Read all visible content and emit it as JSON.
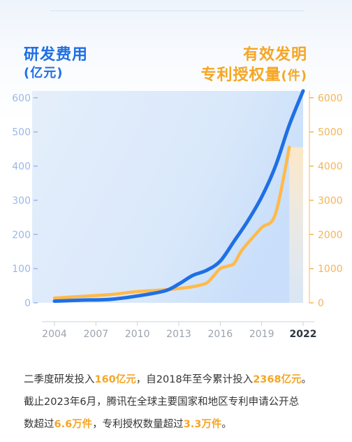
{
  "titles": {
    "left_line1": "研发费用",
    "left_line2": "(亿元)",
    "right_line1": "有效发明",
    "right_line2": "专利授权量",
    "right_unit": "(件)"
  },
  "colors": {
    "rd_line": "#1f6fe5",
    "patent_line": "#ffba4a",
    "left_axis_ticks": "#9ab8e6",
    "right_axis_ticks": "#f5b455",
    "x_ticks": "#9aa3ad",
    "highlight": "#f5a623"
  },
  "chart_data": {
    "type": "line",
    "x_ticks": [
      "2004",
      "2007",
      "2010",
      "2013",
      "2016",
      "2019",
      "2022"
    ],
    "xlim": [
      2004,
      2022
    ],
    "y_left": {
      "ticks": [
        "0",
        "100",
        "200",
        "300",
        "400",
        "500",
        "600"
      ],
      "lim": [
        0,
        620
      ]
    },
    "y_right": {
      "ticks": [
        "0",
        "1000",
        "2000",
        "3000",
        "4000",
        "5000",
        "6000"
      ],
      "lim": [
        0,
        6200
      ]
    },
    "series": [
      {
        "axis": "left",
        "x": [
          2004,
          2006,
          2008,
          2010,
          2012,
          2013,
          2014,
          2015,
          2016,
          2017,
          2018,
          2019,
          2020,
          2021,
          2022
        ],
        "values": [
          5,
          8,
          10,
          20,
          35,
          55,
          80,
          95,
          122,
          180,
          240,
          310,
          400,
          520,
          620
        ]
      },
      {
        "axis": "right",
        "x": [
          2004,
          2006,
          2008,
          2010,
          2012,
          2013,
          2014,
          2015,
          2015.5,
          2016,
          2016.5,
          2017,
          2017.5,
          2018,
          2019,
          2020,
          2021
        ],
        "values": [
          140,
          190,
          240,
          330,
          380,
          420,
          470,
          580,
          780,
          1000,
          1070,
          1150,
          1500,
          1750,
          2200,
          2600,
          4550
        ]
      }
    ]
  },
  "caption": {
    "line1": [
      {
        "text": "二季度研发投入",
        "hl": false
      },
      {
        "text": "160亿元",
        "hl": true
      },
      {
        "text": "，自2018年至今累计投入",
        "hl": false
      },
      {
        "text": "2368亿元",
        "hl": true
      },
      {
        "text": "。",
        "hl": false
      }
    ],
    "line2": [
      {
        "text": "截止2023年6月，腾讯在全球主要国家和地区专利申请公开总",
        "hl": false
      }
    ],
    "line3": [
      {
        "text": "数超过",
        "hl": false
      },
      {
        "text": "6.6万件",
        "hl": true
      },
      {
        "text": "，专利授权数量超过",
        "hl": false
      },
      {
        "text": "3.3万件",
        "hl": true
      },
      {
        "text": "。",
        "hl": false
      }
    ]
  }
}
